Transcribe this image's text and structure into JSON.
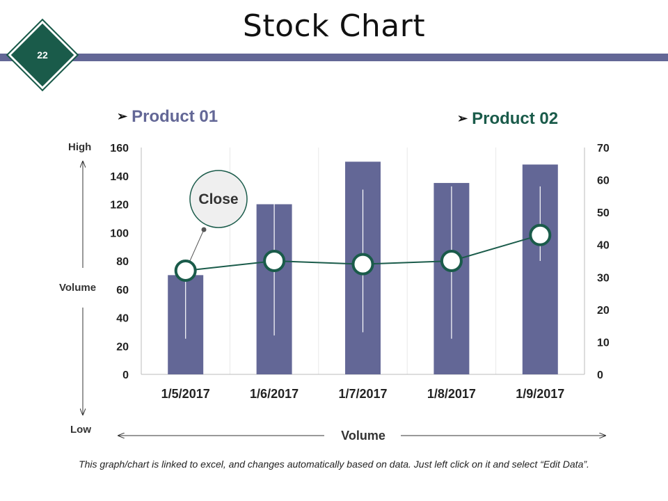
{
  "page": {
    "title": "Stock Chart",
    "slide_number": "22",
    "footer_note": "This graph/chart is linked to excel, and changes automatically based on data. Just left click on it and select “Edit Data”."
  },
  "legend": {
    "series1": "Product 01",
    "series2": "Product 02",
    "marker_glyph": "➢"
  },
  "labels": {
    "high": "High",
    "low": "Low",
    "volume_left": "Volume",
    "volume_bottom": "Volume",
    "close_callout": "Close"
  },
  "colors": {
    "bar": "#636796",
    "line": "#1a5b4a",
    "band": "#636796",
    "badge": "#1a5b4a"
  },
  "chart_data": {
    "type": "bar",
    "title": "Stock Chart",
    "categories": [
      "1/5/2017",
      "1/6/2017",
      "1/7/2017",
      "1/8/2017",
      "1/9/2017"
    ],
    "primary_axis": {
      "ylim": [
        0,
        160
      ],
      "ticks": [
        0,
        20,
        40,
        60,
        80,
        100,
        120,
        140,
        160
      ]
    },
    "secondary_axis": {
      "ylim": [
        0,
        70
      ],
      "ticks": [
        0,
        10,
        20,
        30,
        40,
        50,
        60,
        70
      ]
    },
    "series": [
      {
        "name": "Volume",
        "type": "bar",
        "axis": "primary",
        "values": [
          70,
          120,
          150,
          135,
          148
        ]
      },
      {
        "name": "High",
        "type": "hiline",
        "axis": "secondary",
        "values": [
          32,
          57,
          57,
          58,
          58
        ]
      },
      {
        "name": "Low",
        "type": "hiline",
        "axis": "secondary",
        "values": [
          11,
          12,
          13,
          11,
          35
        ]
      },
      {
        "name": "Close",
        "type": "line",
        "axis": "secondary",
        "values": [
          32,
          35,
          34,
          35,
          43
        ]
      }
    ]
  }
}
